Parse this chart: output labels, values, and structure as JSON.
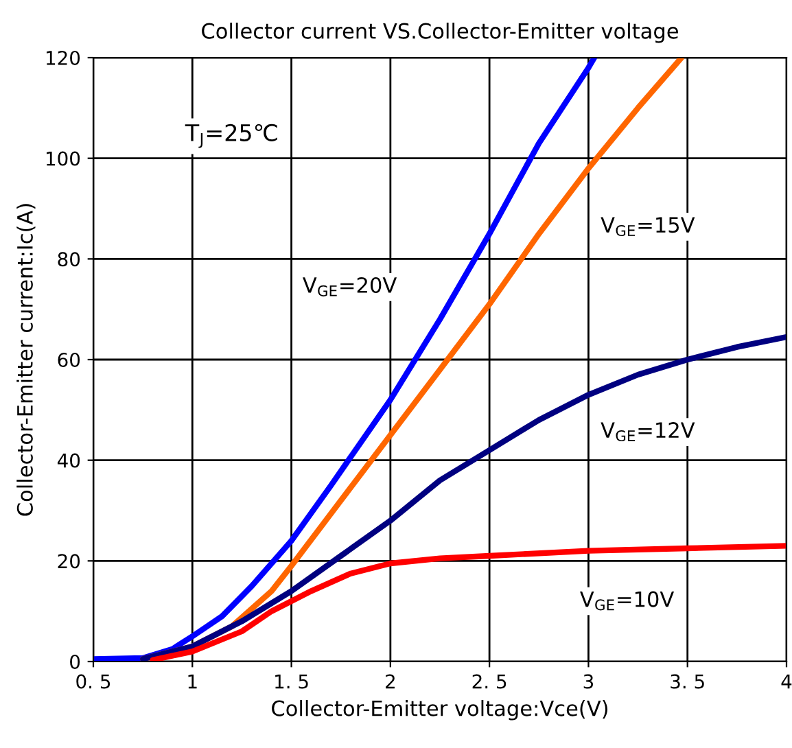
{
  "chart_data": {
    "type": "line",
    "title": "Collector current VS.Collector-Emitter voltage",
    "xlabel": "Collector-Emitter voltage:Vce(V)",
    "ylabel": "Collector-Emitter current:Ic(A)",
    "xlim": [
      0.5,
      4
    ],
    "ylim": [
      0,
      120
    ],
    "xticks": [
      {
        "value": 0.5,
        "label": "0. 5"
      },
      1,
      {
        "value": 1.5,
        "label": "1. 5"
      },
      2,
      {
        "value": 2.5,
        "label": "2. 5"
      },
      3,
      {
        "value": 3.5,
        "label": "3. 5"
      },
      4
    ],
    "yticks": [
      0,
      20,
      40,
      60,
      80,
      100,
      120
    ],
    "grid": true,
    "marker": "none",
    "line_style": "solid",
    "series": [
      {
        "name": "V$_{GE}$=20V",
        "color": "#0000ff",
        "x": [
          0.5,
          0.75,
          0.9,
          1.0,
          1.15,
          1.3,
          1.5,
          1.7,
          2.0,
          2.25,
          2.5,
          2.75,
          3.0,
          3.03
        ],
        "values": [
          0.5,
          0.7,
          2.5,
          5,
          9,
          15,
          24,
          35,
          52,
          68,
          85,
          103,
          118,
          120
        ]
      },
      {
        "name": "V$_{GE}$=15V",
        "color": "#ff6600",
        "x": [
          0.75,
          1.0,
          1.2,
          1.4,
          1.5,
          1.75,
          2.0,
          2.25,
          2.5,
          2.75,
          3.0,
          3.25,
          3.47
        ],
        "values": [
          0.5,
          3,
          7,
          14,
          19,
          32,
          45,
          58,
          71,
          85,
          98,
          110,
          120
        ]
      },
      {
        "name": "V$_{GE}$=12V",
        "color": "#000080",
        "x": [
          0.75,
          1.0,
          1.25,
          1.5,
          1.75,
          2.0,
          2.25,
          2.5,
          2.75,
          3.0,
          3.25,
          3.5,
          3.75,
          4.0
        ],
        "values": [
          0.5,
          3,
          8,
          14,
          21,
          28,
          36,
          42,
          48,
          53,
          57,
          60,
          62.5,
          64.5
        ]
      },
      {
        "name": "V$_{GE}$=10V",
        "color": "#ff0000",
        "x": [
          0.8,
          1.0,
          1.25,
          1.4,
          1.6,
          1.8,
          2.0,
          2.25,
          2.5,
          3.0,
          3.5,
          4.0
        ],
        "values": [
          0.3,
          2,
          6,
          10,
          14,
          17.5,
          19.5,
          20.5,
          21,
          22,
          22.5,
          23
        ]
      }
    ],
    "annotations": [
      "T$_{J}$=25℃"
    ]
  }
}
